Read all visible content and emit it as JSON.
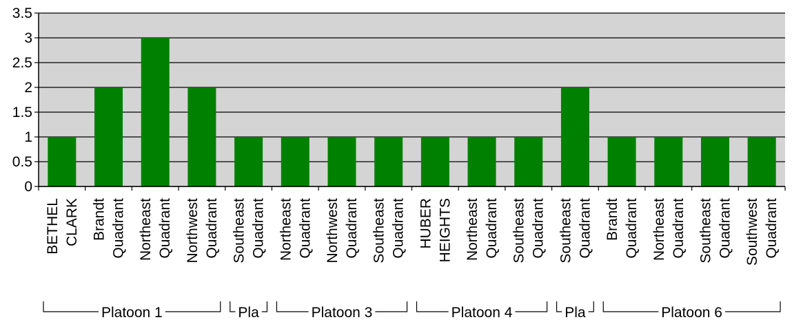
{
  "colors": {
    "plot_background": "#d4d4d4",
    "bar_fill": "#008000",
    "gridline": "#000000",
    "axis": "#000000"
  },
  "chart_data": {
    "type": "bar",
    "title": "",
    "xlabel": "",
    "ylabel": "",
    "ylim": [
      0,
      3.5
    ],
    "yticks": [
      "0",
      "0.5",
      "1",
      "1.5",
      "2",
      "2.5",
      "3",
      "3.5"
    ],
    "grid": true,
    "legend": "none",
    "categories": [
      [
        "BETHEL",
        "CLARK"
      ],
      [
        "Brandt",
        "Quadrant"
      ],
      [
        "Northeast",
        "Quadrant"
      ],
      [
        "Northwest",
        "Quadrant"
      ],
      [
        "Southeast",
        "Quadrant"
      ],
      [
        "Northeast",
        "Quadrant"
      ],
      [
        "Northwest",
        "Quadrant"
      ],
      [
        "Southeast",
        "Quadrant"
      ],
      [
        "HUBER",
        "HEIGHTS"
      ],
      [
        "Northeast",
        "Quadrant"
      ],
      [
        "Southeast",
        "Quadrant"
      ],
      [
        "Southeast",
        "Quadrant"
      ],
      [
        "Brandt",
        "Quadrant"
      ],
      [
        "Northeast",
        "Quadrant"
      ],
      [
        "Southeast",
        "Quadrant"
      ],
      [
        "Southwest",
        "Quadrant"
      ]
    ],
    "values": [
      1,
      2,
      3,
      2,
      1,
      1,
      1,
      1,
      1,
      1,
      1,
      2,
      1,
      1,
      1,
      1
    ],
    "groups": [
      {
        "label": "Platoon 1",
        "start": 0,
        "end": 3
      },
      {
        "label": "Pla",
        "start": 4,
        "end": 4
      },
      {
        "label": "Platoon 3",
        "start": 5,
        "end": 7
      },
      {
        "label": "Platoon 4",
        "start": 8,
        "end": 10
      },
      {
        "label": "Pla",
        "start": 11,
        "end": 11
      },
      {
        "label": "Platoon 6",
        "start": 12,
        "end": 15
      }
    ]
  }
}
